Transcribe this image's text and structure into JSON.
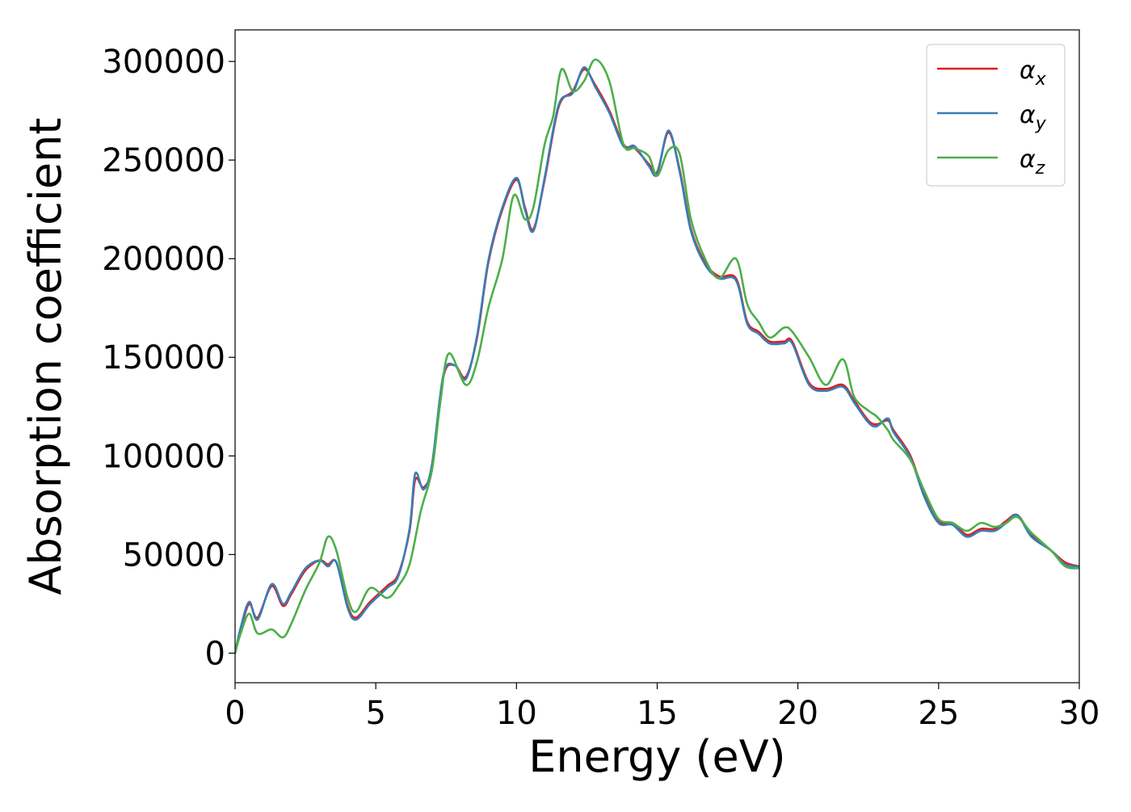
{
  "chart_data": {
    "type": "line",
    "title": "",
    "xlabel": "Energy (eV)",
    "ylabel": "Absorption coefficient",
    "xlim": [
      0,
      30
    ],
    "ylim": [
      -15000,
      316000
    ],
    "xticks": [
      0,
      5,
      10,
      15,
      20,
      25,
      30
    ],
    "xtick_labels": [
      "0",
      "5",
      "10",
      "15",
      "20",
      "25",
      "30"
    ],
    "yticks": [
      0,
      50000,
      100000,
      150000,
      200000,
      250000,
      300000
    ],
    "ytick_labels": [
      "0",
      "50000",
      "100000",
      "150000",
      "200000",
      "250000",
      "300000"
    ],
    "grid": false,
    "legend_position": "top-right",
    "series": [
      {
        "name": "αx",
        "name_base": "α",
        "name_sub": "x",
        "color": "#e41a1c",
        "x": [
          0,
          0.2,
          0.5,
          0.8,
          1.3,
          1.7,
          2.0,
          2.5,
          3.0,
          3.3,
          3.6,
          4.0,
          4.3,
          4.8,
          5.4,
          5.8,
          6.2,
          6.4,
          6.7,
          7.0,
          7.4,
          7.8,
          8.2,
          8.6,
          9.0,
          9.5,
          10.0,
          10.3,
          10.6,
          11.0,
          11.5,
          12.0,
          12.4,
          12.8,
          13.3,
          13.8,
          14.2,
          14.7,
          15.0,
          15.4,
          15.8,
          16.2,
          16.7,
          17.2,
          17.8,
          18.2,
          18.6,
          19.0,
          19.5,
          19.8,
          20.4,
          21.0,
          21.6,
          22.0,
          22.5,
          22.8,
          23.2,
          23.4,
          24.0,
          24.5,
          25.0,
          25.5,
          26.0,
          26.5,
          27.0,
          27.4,
          27.8,
          28.3,
          29.0,
          29.5,
          30.0
        ],
        "values": [
          0,
          12000,
          25000,
          18000,
          34000,
          24000,
          30000,
          42000,
          47000,
          45000,
          46000,
          24000,
          18000,
          26000,
          34000,
          40000,
          62000,
          88000,
          84000,
          95000,
          140000,
          146000,
          140000,
          160000,
          198000,
          225000,
          240000,
          226000,
          215000,
          240000,
          277000,
          285000,
          296000,
          288000,
          275000,
          258000,
          256000,
          248000,
          244000,
          264000,
          245000,
          215000,
          198000,
          191000,
          190000,
          168000,
          163000,
          158000,
          158000,
          158000,
          137000,
          134000,
          136000,
          128000,
          118000,
          116000,
          118000,
          113000,
          100000,
          80000,
          67000,
          66000,
          60000,
          63000,
          63000,
          67000,
          70000,
          60000,
          52000,
          46000,
          44000
        ]
      },
      {
        "name": "αy",
        "name_base": "α",
        "name_sub": "y",
        "color": "#377eb8",
        "x": [
          0,
          0.2,
          0.5,
          0.8,
          1.3,
          1.7,
          2.0,
          2.5,
          3.0,
          3.3,
          3.6,
          4.0,
          4.3,
          4.8,
          5.4,
          5.8,
          6.2,
          6.4,
          6.7,
          7.0,
          7.4,
          7.8,
          8.2,
          8.6,
          9.0,
          9.5,
          10.0,
          10.3,
          10.6,
          11.0,
          11.5,
          12.0,
          12.4,
          12.8,
          13.3,
          13.8,
          14.2,
          14.7,
          15.0,
          15.4,
          15.8,
          16.2,
          16.7,
          17.2,
          17.8,
          18.2,
          18.6,
          19.0,
          19.5,
          19.8,
          20.4,
          21.0,
          21.6,
          22.0,
          22.5,
          22.8,
          23.2,
          23.4,
          24.0,
          24.5,
          25.0,
          25.5,
          26.0,
          26.5,
          27.0,
          27.4,
          27.8,
          28.3,
          29.0,
          29.5,
          30.0
        ],
        "values": [
          0,
          13000,
          26000,
          17000,
          35000,
          25000,
          31000,
          43000,
          47000,
          44000,
          46000,
          23000,
          17000,
          25000,
          33000,
          39000,
          63000,
          91000,
          83000,
          96000,
          141000,
          146000,
          139000,
          161000,
          199000,
          226000,
          241000,
          225000,
          214000,
          241000,
          278000,
          284000,
          297000,
          287000,
          274000,
          257000,
          257000,
          247000,
          243000,
          265000,
          244000,
          214000,
          197000,
          190000,
          189000,
          167000,
          162000,
          157000,
          157000,
          157000,
          136000,
          133000,
          135000,
          127000,
          117000,
          115000,
          119000,
          112000,
          99000,
          79000,
          66000,
          65000,
          59000,
          62000,
          62000,
          66000,
          70000,
          59000,
          52000,
          45000,
          44000
        ]
      },
      {
        "name": "αz",
        "name_base": "α",
        "name_sub": "z",
        "color": "#4daf4a",
        "x": [
          0,
          0.2,
          0.5,
          0.8,
          1.3,
          1.7,
          2.0,
          2.5,
          3.0,
          3.3,
          3.6,
          4.0,
          4.3,
          4.8,
          5.4,
          5.8,
          6.2,
          6.6,
          7.0,
          7.3,
          7.6,
          8.2,
          8.6,
          9.0,
          9.5,
          9.9,
          10.3,
          10.6,
          11.0,
          11.3,
          11.6,
          12.0,
          12.4,
          12.8,
          13.3,
          13.8,
          14.2,
          14.7,
          15.0,
          15.4,
          15.8,
          16.2,
          16.7,
          17.2,
          17.8,
          18.2,
          18.6,
          19.0,
          19.5,
          19.8,
          20.4,
          21.0,
          21.6,
          22.0,
          22.5,
          22.8,
          23.2,
          23.4,
          24.0,
          24.5,
          25.0,
          25.5,
          26.0,
          26.5,
          27.0,
          27.4,
          27.8,
          28.3,
          29.0,
          29.5,
          30.0
        ],
        "values": [
          0,
          10000,
          20000,
          10000,
          12000,
          8000,
          15000,
          32000,
          46000,
          59000,
          52000,
          28000,
          21000,
          33000,
          28000,
          34000,
          45000,
          72000,
          93000,
          128000,
          152000,
          136000,
          148000,
          175000,
          200000,
          232000,
          220000,
          226000,
          258000,
          272000,
          296000,
          285000,
          290000,
          301000,
          290000,
          258000,
          256000,
          252000,
          242000,
          255000,
          253000,
          220000,
          200000,
          190000,
          200000,
          177000,
          168000,
          160000,
          165000,
          163000,
          150000,
          136000,
          149000,
          130000,
          123000,
          120000,
          113000,
          108000,
          98000,
          82000,
          68000,
          66000,
          62000,
          66000,
          64000,
          66000,
          69000,
          61000,
          52000,
          44000,
          43000
        ]
      }
    ]
  }
}
